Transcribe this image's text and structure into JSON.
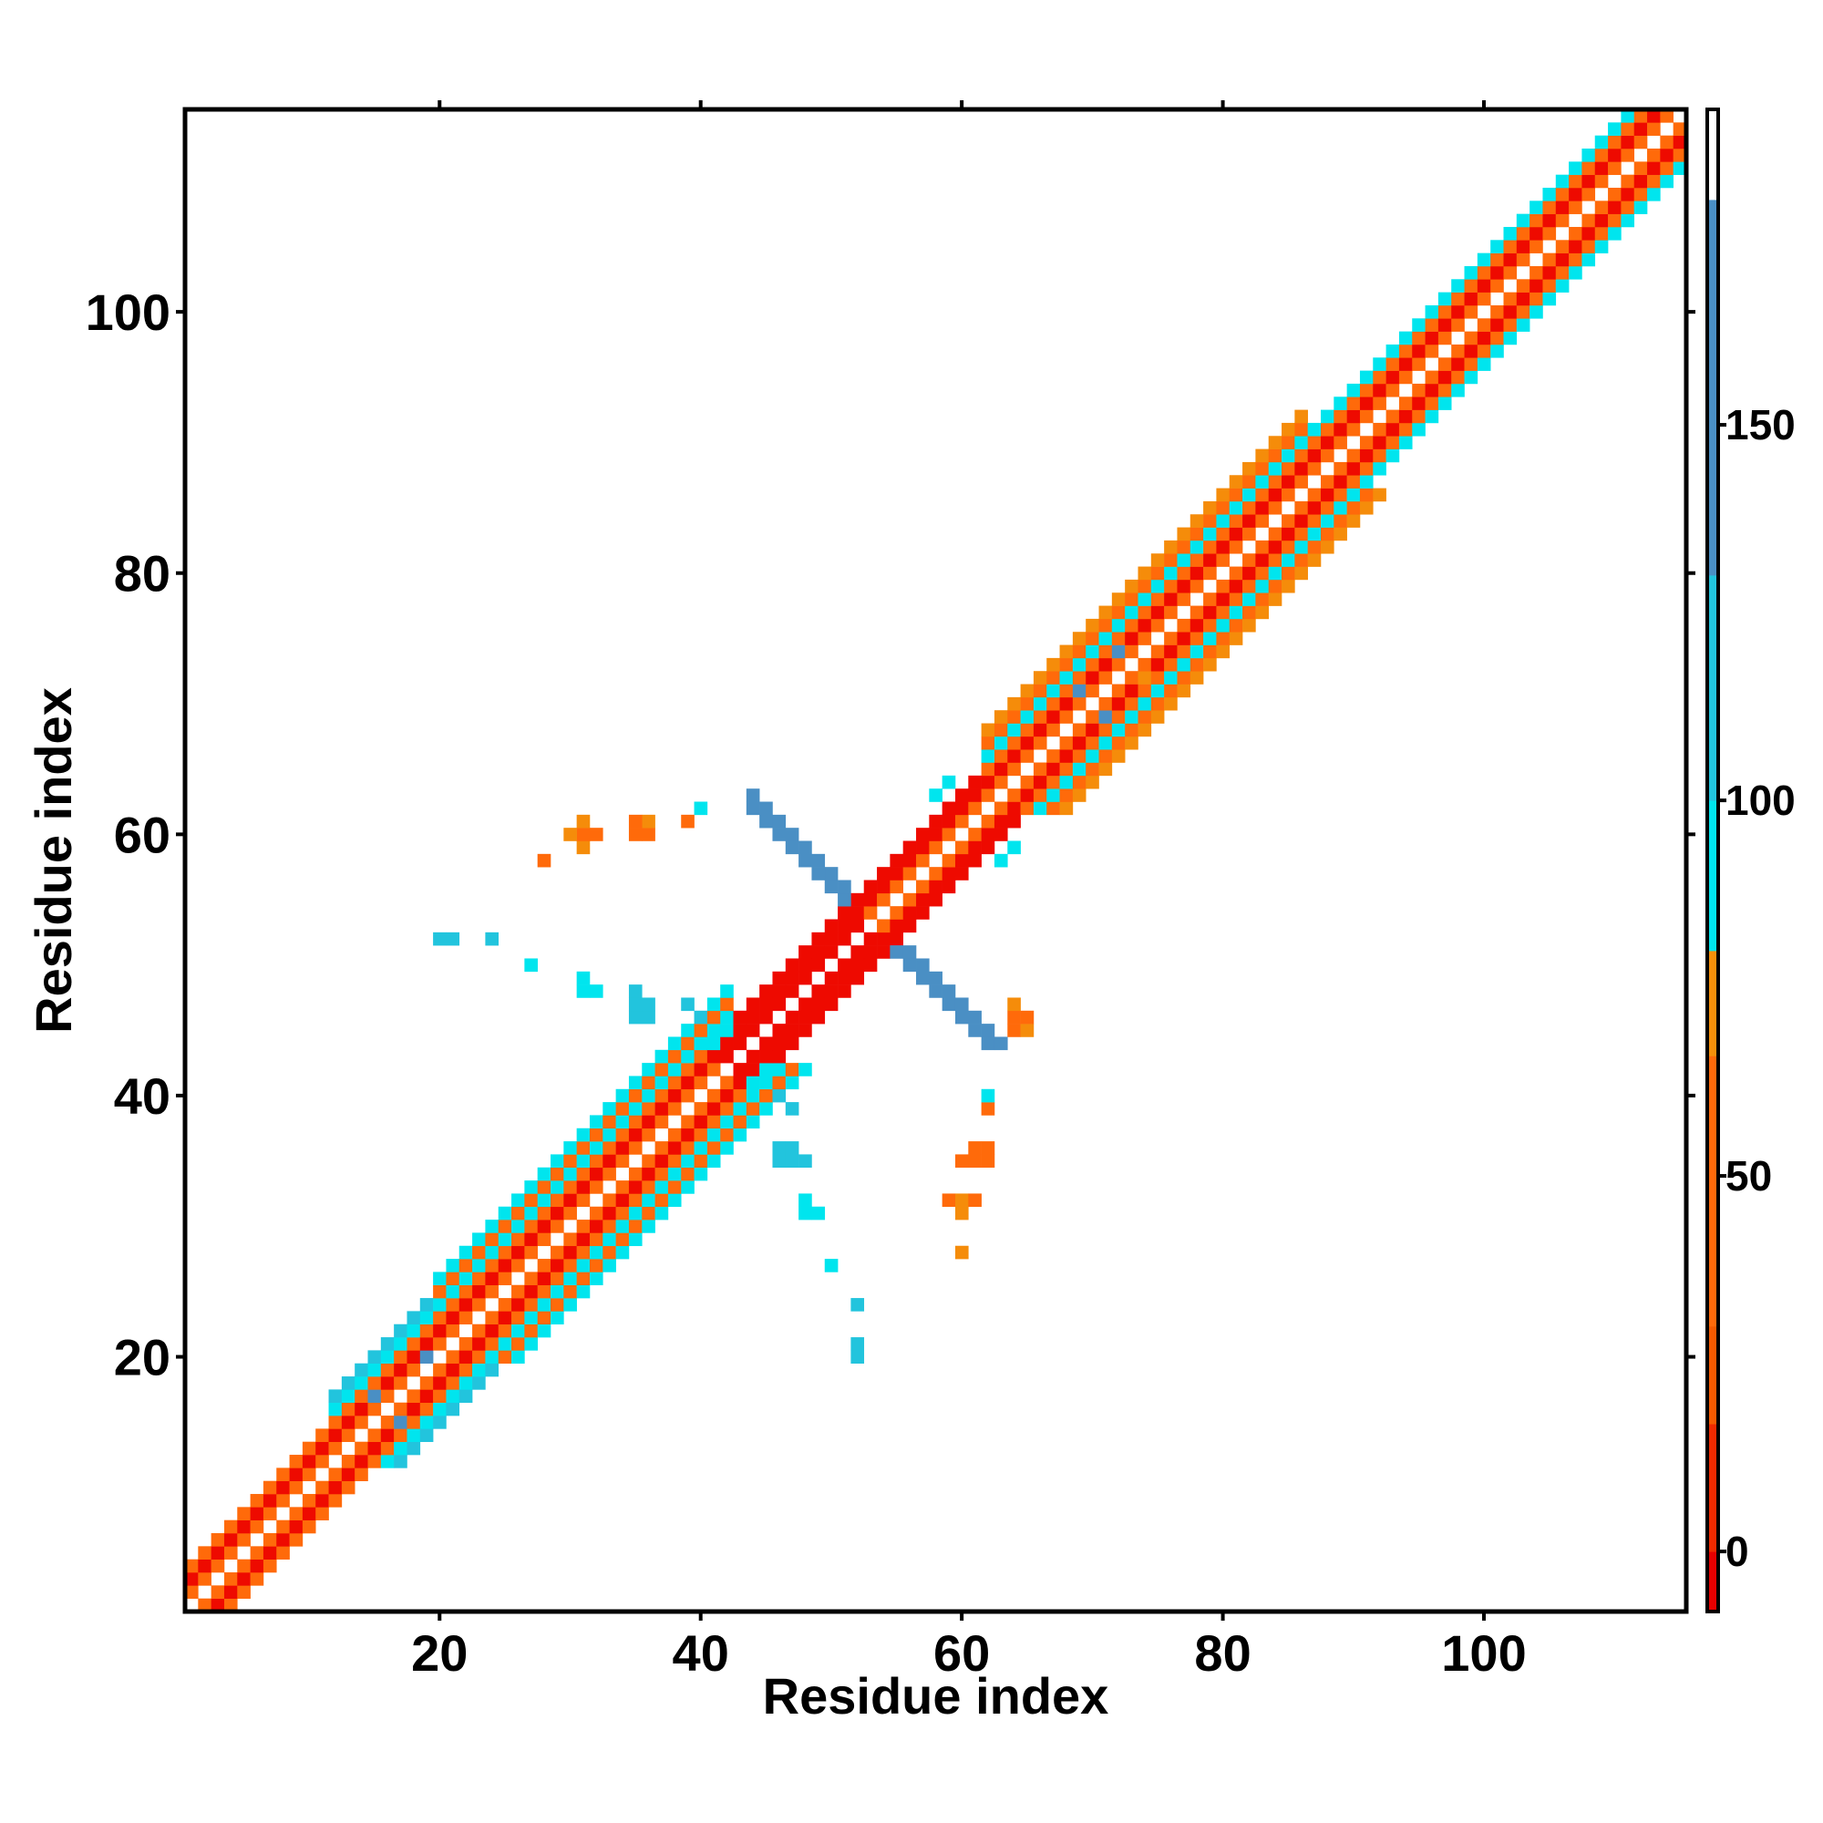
{
  "chart_data": {
    "type": "heatmap",
    "title": "",
    "xlabel": "Residue index",
    "ylabel": "Residue index",
    "xlim": [
      0.5,
      115.5
    ],
    "ylim": [
      0.5,
      115.5
    ],
    "x_ticks": [
      20,
      40,
      60,
      80,
      100
    ],
    "y_ticks": [
      20,
      40,
      60,
      80,
      100
    ],
    "colorbar": {
      "ticks": [
        0,
        50,
        100,
        150
      ],
      "range": [
        -8,
        192
      ],
      "segments": [
        {
          "from": -8,
          "to": 0,
          "color": "#e60000"
        },
        {
          "from": 0,
          "to": 17,
          "color": "#ee2a00"
        },
        {
          "from": 17,
          "to": 30,
          "color": "#f55a00"
        },
        {
          "from": 30,
          "to": 66,
          "color": "#ff6a0a"
        },
        {
          "from": 66,
          "to": 80,
          "color": "#f5900a"
        },
        {
          "from": 80,
          "to": 100,
          "color": "#00e5ee"
        },
        {
          "from": 100,
          "to": 130,
          "color": "#22c4dd"
        },
        {
          "from": 130,
          "to": 180,
          "color": "#4a8fc4"
        },
        {
          "from": 180,
          "to": 192,
          "color": "#ffffff"
        }
      ]
    },
    "cell_colors": {
      "r": "#ee0a00",
      "o": "#ff6a0a",
      "a": "#f58c0a",
      "c": "#00e5ee",
      "t": "#22c4dd",
      "b": "#4a8fc4"
    },
    "regions": [
      {
        "residue_start": 1,
        "residue_end": 12,
        "diagonals": [
          {
            "offset": 1,
            "class": "o"
          },
          {
            "offset": 2,
            "class": "r"
          },
          {
            "offset": 3,
            "class": "o"
          }
        ]
      },
      {
        "residue_start": 12,
        "residue_end": 20,
        "diagonals": [
          {
            "offset": 1,
            "class": "o"
          },
          {
            "offset": 2,
            "class": "r"
          },
          {
            "offset": 3,
            "class": "o"
          },
          {
            "offset": 4,
            "class": "c"
          },
          {
            "offset": 5,
            "class": "t"
          }
        ]
      },
      {
        "residue_start": 20,
        "residue_end": 42,
        "diagonals": [
          {
            "offset": 1,
            "class": "o"
          },
          {
            "offset": 2,
            "class": "r"
          },
          {
            "offset": 3,
            "class": "o"
          },
          {
            "offset": 4,
            "class": "c"
          },
          {
            "offset": 5,
            "class": "o"
          },
          {
            "offset": 6,
            "class": "c"
          }
        ]
      },
      {
        "residue_start": 42,
        "residue_end": 53,
        "diagonals": [
          {
            "offset": 1,
            "class": "r"
          },
          {
            "offset": 2,
            "class": "r"
          },
          {
            "offset": 3,
            "class": "r"
          }
        ]
      },
      {
        "residue_start": 53,
        "residue_end": 62,
        "diagonals": [
          {
            "offset": 1,
            "class": "o"
          },
          {
            "offset": 2,
            "class": "r"
          },
          {
            "offset": 3,
            "class": "r"
          }
        ]
      },
      {
        "residue_start": 62,
        "residue_end": 86,
        "diagonals": [
          {
            "offset": 1,
            "class": "o"
          },
          {
            "offset": 2,
            "class": "r"
          },
          {
            "offset": 3,
            "class": "o"
          },
          {
            "offset": 4,
            "class": "c"
          },
          {
            "offset": 5,
            "class": "o"
          },
          {
            "offset": 6,
            "class": "a"
          }
        ]
      },
      {
        "residue_start": 86,
        "residue_end": 115,
        "diagonals": [
          {
            "offset": 1,
            "class": "o"
          },
          {
            "offset": 2,
            "class": "r"
          },
          {
            "offset": 3,
            "class": "o"
          },
          {
            "offset": 4,
            "class": "c"
          }
        ]
      }
    ],
    "antiparallel_hairpin": {
      "center": 53,
      "half_length_start": 2,
      "half_length_end": 9,
      "class": "b"
    },
    "scattered_contacts": [
      {
        "i": 40,
        "j": 44,
        "class": "c"
      },
      {
        "i": 41,
        "j": 44,
        "class": "c"
      },
      {
        "i": 42,
        "j": 45,
        "class": "c"
      },
      {
        "i": 40,
        "j": 46,
        "class": "t"
      },
      {
        "i": 39,
        "j": 47,
        "class": "t"
      },
      {
        "i": 41,
        "j": 47,
        "class": "c"
      },
      {
        "i": 35,
        "j": 46,
        "class": "t"
      },
      {
        "i": 36,
        "j": 46,
        "class": "t"
      },
      {
        "i": 35,
        "j": 47,
        "class": "t"
      },
      {
        "i": 36,
        "j": 47,
        "class": "t"
      },
      {
        "i": 35,
        "j": 48,
        "class": "t"
      },
      {
        "i": 31,
        "j": 48,
        "class": "c"
      },
      {
        "i": 32,
        "j": 48,
        "class": "c"
      },
      {
        "i": 31,
        "j": 49,
        "class": "c"
      },
      {
        "i": 27,
        "j": 50,
        "class": "c"
      },
      {
        "i": 24,
        "j": 52,
        "class": "t"
      },
      {
        "i": 20,
        "j": 52,
        "class": "t"
      },
      {
        "i": 21,
        "j": 52,
        "class": "t"
      },
      {
        "i": 40,
        "j": 62,
        "class": "c"
      },
      {
        "i": 39,
        "j": 61,
        "class": "o"
      },
      {
        "i": 35,
        "j": 60,
        "class": "o"
      },
      {
        "i": 36,
        "j": 60,
        "class": "o"
      },
      {
        "i": 36,
        "j": 61,
        "class": "a"
      },
      {
        "i": 35,
        "j": 61,
        "class": "o"
      },
      {
        "i": 32,
        "j": 60,
        "class": "o"
      },
      {
        "i": 31,
        "j": 59,
        "class": "a"
      },
      {
        "i": 31,
        "j": 60,
        "class": "o"
      },
      {
        "i": 31,
        "j": 61,
        "class": "a"
      },
      {
        "i": 30,
        "j": 60,
        "class": "a"
      },
      {
        "i": 28,
        "j": 58,
        "class": "o"
      },
      {
        "i": 60,
        "j": 28,
        "class": "a"
      },
      {
        "i": 60,
        "j": 31,
        "class": "a"
      },
      {
        "i": 59,
        "j": 32,
        "class": "o"
      },
      {
        "i": 60,
        "j": 32,
        "class": "a"
      },
      {
        "i": 61,
        "j": 32,
        "class": "o"
      },
      {
        "i": 60,
        "j": 35,
        "class": "o"
      },
      {
        "i": 61,
        "j": 35,
        "class": "o"
      },
      {
        "i": 62,
        "j": 35,
        "class": "o"
      },
      {
        "i": 61,
        "j": 36,
        "class": "o"
      },
      {
        "i": 62,
        "j": 36,
        "class": "o"
      },
      {
        "i": 62,
        "j": 39,
        "class": "o"
      },
      {
        "i": 62,
        "j": 40,
        "class": "c"
      },
      {
        "i": 64,
        "j": 45,
        "class": "o"
      },
      {
        "i": 65,
        "j": 45,
        "class": "a"
      },
      {
        "i": 64,
        "j": 46,
        "class": "o"
      },
      {
        "i": 65,
        "j": 46,
        "class": "o"
      },
      {
        "i": 64,
        "j": 47,
        "class": "a"
      },
      {
        "i": 44,
        "j": 40,
        "class": "c"
      },
      {
        "i": 44,
        "j": 41,
        "class": "c"
      },
      {
        "i": 45,
        "j": 42,
        "class": "c"
      },
      {
        "i": 46,
        "j": 40,
        "class": "t"
      },
      {
        "i": 47,
        "j": 39,
        "class": "t"
      },
      {
        "i": 47,
        "j": 41,
        "class": "c"
      },
      {
        "i": 46,
        "j": 35,
        "class": "t"
      },
      {
        "i": 47,
        "j": 35,
        "class": "t"
      },
      {
        "i": 48,
        "j": 35,
        "class": "t"
      },
      {
        "i": 46,
        "j": 36,
        "class": "t"
      },
      {
        "i": 47,
        "j": 36,
        "class": "t"
      },
      {
        "i": 48,
        "j": 31,
        "class": "c"
      },
      {
        "i": 49,
        "j": 31,
        "class": "c"
      },
      {
        "i": 48,
        "j": 32,
        "class": "c"
      },
      {
        "i": 50,
        "j": 27,
        "class": "c"
      },
      {
        "i": 52,
        "j": 24,
        "class": "t"
      },
      {
        "i": 52,
        "j": 20,
        "class": "t"
      },
      {
        "i": 52,
        "j": 21,
        "class": "t"
      },
      {
        "i": 17,
        "j": 15,
        "class": "b"
      },
      {
        "i": 15,
        "j": 17,
        "class": "b"
      },
      {
        "i": 19,
        "j": 20,
        "class": "b"
      },
      {
        "i": 71,
        "j": 69,
        "class": "b"
      },
      {
        "i": 69,
        "j": 71,
        "class": "b"
      },
      {
        "i": 72,
        "j": 74,
        "class": "b"
      },
      {
        "i": 74,
        "j": 72,
        "class": "a"
      },
      {
        "i": 75,
        "j": 69,
        "class": "a"
      },
      {
        "i": 69,
        "j": 75,
        "class": "a"
      },
      {
        "i": 58,
        "j": 63,
        "class": "c"
      },
      {
        "i": 59,
        "j": 64,
        "class": "c"
      },
      {
        "i": 63,
        "j": 58,
        "class": "c"
      },
      {
        "i": 64,
        "j": 59,
        "class": "c"
      }
    ]
  }
}
